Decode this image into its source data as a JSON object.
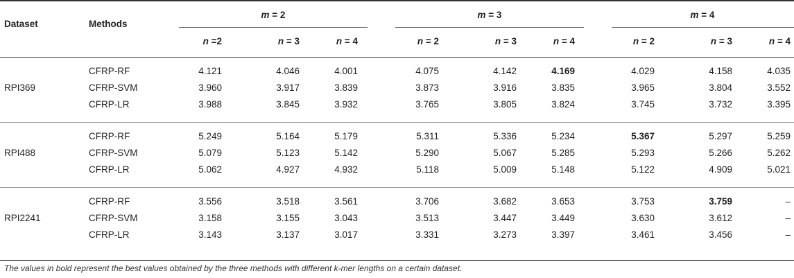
{
  "headers": {
    "dataset": "Dataset",
    "methods": "Methods",
    "m_groups": [
      "m = 2",
      "m = 3",
      "m = 4"
    ],
    "n_cols": [
      "n =2",
      "n = 3",
      "n = 4",
      "n = 2",
      "n = 3",
      "n = 4",
      "n = 2",
      "n = 3",
      "n = 4"
    ]
  },
  "groups": [
    {
      "dataset": "RPI369",
      "rows": [
        {
          "method": "CFRP-RF",
          "values": [
            "4.121",
            "4.046",
            "4.001",
            "4.075",
            "4.142",
            "4.169",
            "4.029",
            "4.158",
            "4.035"
          ],
          "bold": [
            5
          ]
        },
        {
          "method": "CFRP-SVM",
          "values": [
            "3.960",
            "3.917",
            "3.839",
            "3.873",
            "3.916",
            "3.835",
            "3.965",
            "3.804",
            "3.552"
          ],
          "bold": []
        },
        {
          "method": "CFRP-LR",
          "values": [
            "3.988",
            "3.845",
            "3.932",
            "3.765",
            "3.805",
            "3.824",
            "3.745",
            "3.732",
            "3.395"
          ],
          "bold": []
        }
      ]
    },
    {
      "dataset": "RPI488",
      "rows": [
        {
          "method": "CFRP-RF",
          "values": [
            "5.249",
            "5.164",
            "5.179",
            "5.311",
            "5.336",
            "5.234",
            "5.367",
            "5.297",
            "5.259"
          ],
          "bold": [
            6
          ]
        },
        {
          "method": "CFRP-SVM",
          "values": [
            "5.079",
            "5.123",
            "5.142",
            "5.290",
            "5.067",
            "5.285",
            "5.293",
            "5.266",
            "5.262"
          ],
          "bold": []
        },
        {
          "method": "CFRP-LR",
          "values": [
            "5.062",
            "4.927",
            "4.932",
            "5.118",
            "5.009",
            "5.148",
            "5.122",
            "4.909",
            "5.021"
          ],
          "bold": []
        }
      ]
    },
    {
      "dataset": "RPI2241",
      "rows": [
        {
          "method": "CFRP-RF",
          "values": [
            "3.556",
            "3.518",
            "3.561",
            "3.706",
            "3.682",
            "3.653",
            "3.753",
            "3.759",
            "–"
          ],
          "bold": [
            7
          ]
        },
        {
          "method": "CFRP-SVM",
          "values": [
            "3.158",
            "3.155",
            "3.043",
            "3.513",
            "3.447",
            "3.449",
            "3.630",
            "3.612",
            "–"
          ],
          "bold": []
        },
        {
          "method": "CFRP-LR",
          "values": [
            "3.143",
            "3.137",
            "3.017",
            "3.331",
            "3.273",
            "3.397",
            "3.461",
            "3.456",
            "–"
          ],
          "bold": []
        }
      ]
    }
  ],
  "footnote": "The values in bold represent the best values obtained by the three methods with different k-mer lengths on a certain dataset."
}
